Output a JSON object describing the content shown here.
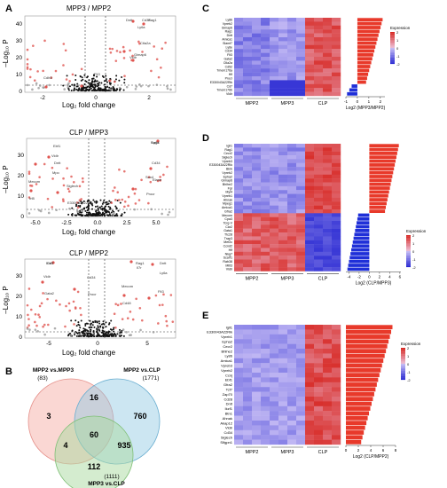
{
  "panel_labels": {
    "A": "A",
    "B": "B",
    "C": "C",
    "D": "D",
    "E": "E"
  },
  "volcano": [
    {
      "id": "v1",
      "title": "MPP3 / MPP2",
      "ylabel": "–Log₁₀ P",
      "xlabel": "Log₂ fold change",
      "x_ticks": [
        "-2",
        "0",
        "2"
      ],
      "y_ticks": [
        "0",
        "10",
        "20",
        "30",
        "40"
      ],
      "labels": [
        "Dntt",
        "Rag1",
        "Ctla2a",
        "Gimap6",
        "Flt3",
        "Cdh5",
        "Cd34",
        "Ly6a",
        "Vldlr"
      ]
    },
    {
      "id": "v2",
      "title": "CLP / MPP3",
      "ylabel": "–Log₁₀ P",
      "xlabel": "Log₂ fold change",
      "x_ticks": [
        "-5.0",
        "-2.5",
        "0.0",
        "2.5",
        "5.0"
      ],
      "y_ticks": [
        "0",
        "10",
        "20",
        "30"
      ],
      "labels": [
        "Rag1",
        "Ebf1",
        "Vldlr",
        "Cd34",
        "Sox4",
        "Mecom",
        "Siglech",
        "Ly6a",
        "Dntt",
        "Mpo",
        "Elane",
        "Procr",
        "Irf8",
        "E330043A22Rik"
      ]
    },
    {
      "id": "v3",
      "title": "CLP / MPP2",
      "ylabel": "–Log₁₀ P",
      "xlabel": "Log₂ fold change",
      "x_ticks": [
        "-5",
        "0",
        "5"
      ],
      "y_ticks": [
        "0",
        "10",
        "20",
        "30"
      ],
      "labels": [
        "Ebf1",
        "Rag1",
        "Dntt",
        "Vldlr",
        "Cd34",
        "Mecom",
        "Flt3",
        "Cd7",
        "Il7r",
        "Ly6a",
        "Gata2",
        "Procr",
        "Cd48"
      ]
    }
  ],
  "venn": {
    "set1": {
      "name": "MPP2 vs.MPP3",
      "count": "(83)"
    },
    "set2": {
      "name": "MPP2 vs.CLP",
      "count": "(1771)"
    },
    "set3": {
      "name": "MPP3 vs.CLP",
      "count": "(1111)"
    },
    "regions": {
      "only1": "3",
      "r12": "16",
      "only2": "760",
      "r13": "4",
      "center": "60",
      "r23": "935",
      "only3": "112"
    }
  },
  "heatmaps": [
    {
      "id": "C",
      "genes": [
        "Ly86",
        "Vpreb2",
        "Gimap6",
        "Rag1",
        "Dntt",
        "Amica1",
        "Slamf7",
        "Ly6e",
        "Cd34",
        "Flt3",
        "Gata2",
        "Ctla2a",
        "Cd52",
        "Tmem176a",
        "Hlf",
        "Procr",
        "E330043A22Rik",
        "Cd7",
        "Tmem176b",
        "Vldlr"
      ],
      "group_labels": [
        "MPP2",
        "MPP3",
        "CLP"
      ],
      "bar_xlabel": "Log2 (MPP3/MPP2)",
      "bar_ticks": [
        "-1",
        "0",
        "1",
        "2"
      ],
      "legend_title": "Expression",
      "legend_ticks": [
        "2",
        "1",
        "0",
        "-1",
        "-2"
      ]
    },
    {
      "id": "D",
      "genes": [
        "Igll1",
        "Rag1",
        "Cecr2",
        "Siglech",
        "Vpreb3",
        "E330043A22Rik",
        "Blnk",
        "Vpreb2",
        "Epha2",
        "Gimap6",
        "Bhlhe2",
        "Fgr",
        "Myl4",
        "Vpreb1",
        "Ahnak",
        "Mpeg1",
        "Amica1",
        "Gfra2",
        "Mecom",
        "Cpa3",
        "Tcrg-V",
        "Car2",
        "Gata1",
        "Ttc28",
        "Trap3",
        "Mef2c",
        "Ccnd2",
        "Hlf",
        "Nkg7",
        "Scarf1",
        "Rab38",
        "Mllt3",
        "Vldlr"
      ],
      "group_labels": [
        "MPP2",
        "MPP3",
        "CLP"
      ],
      "bar_xlabel": "Log2 (CLP/MPP3)",
      "bar_ticks": [
        "-4",
        "-2",
        "0",
        "2",
        "4",
        "6"
      ],
      "legend_title": "Expression",
      "legend_ticks": [
        "2",
        "1",
        "0",
        "-1",
        "-2"
      ]
    },
    {
      "id": "E",
      "genes": [
        "Igll1",
        "E330043A22Rik",
        "Vpreb1",
        "Epha2",
        "Cecr2",
        "Bhlhe2",
        "Ly86",
        "Amica1",
        "Vpreb3",
        "Vpreb2",
        "Ccnj",
        "Ebf1",
        "Gfra2",
        "Tcf7",
        "Zap70",
        "Cd28",
        "Dntt",
        "Ikzf1",
        "Btn1",
        "Ahnak",
        "Akap12",
        "Vldlr",
        "Cd34",
        "Siglech",
        "Slfgpn1"
      ],
      "group_labels": [
        "MPP2",
        "MPP3",
        "CLP"
      ],
      "bar_xlabel": "Log2 (CLP/MPP2)",
      "bar_ticks": [
        "0",
        "2",
        "4",
        "6",
        "8"
      ],
      "legend_title": "Expression",
      "legend_ticks": [
        "2",
        "1",
        "0",
        "-1",
        "-2"
      ]
    }
  ]
}
